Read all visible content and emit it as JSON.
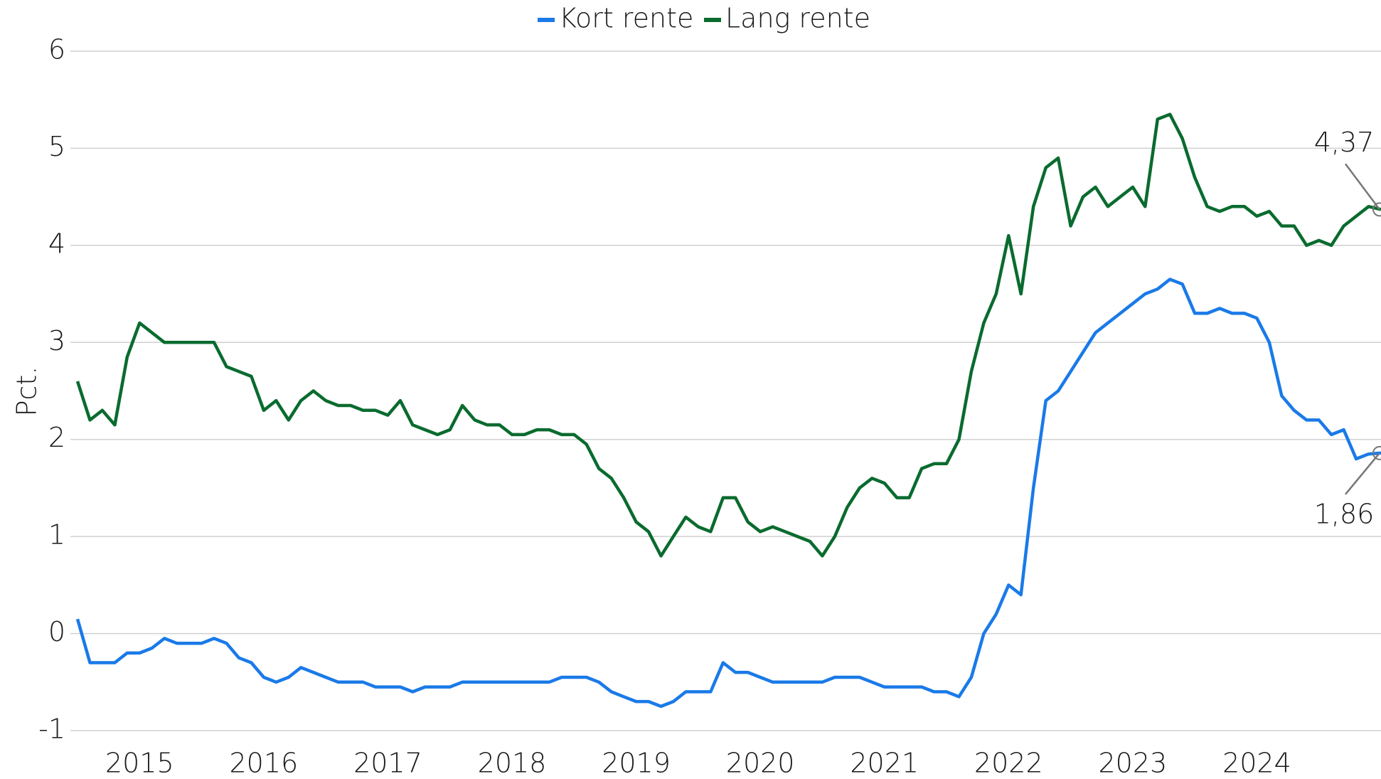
{
  "chart_data": {
    "type": "line",
    "y_label": "Pct.",
    "x": [
      2014.5,
      2014.6,
      2014.7,
      2014.8,
      2014.9,
      2015.0,
      2015.1,
      2015.2,
      2015.3,
      2015.4,
      2015.5,
      2015.6,
      2015.7,
      2015.8,
      2015.9,
      2016.0,
      2016.1,
      2016.2,
      2016.3,
      2016.4,
      2016.5,
      2016.6,
      2016.7,
      2016.8,
      2016.9,
      2017.0,
      2017.1,
      2017.2,
      2017.3,
      2017.4,
      2017.5,
      2017.6,
      2017.7,
      2017.8,
      2017.9,
      2018.0,
      2018.1,
      2018.2,
      2018.3,
      2018.4,
      2018.5,
      2018.6,
      2018.7,
      2018.8,
      2018.9,
      2019.0,
      2019.1,
      2019.2,
      2019.3,
      2019.4,
      2019.5,
      2019.6,
      2019.7,
      2019.8,
      2019.9,
      2020.0,
      2020.1,
      2020.2,
      2020.3,
      2020.4,
      2020.5,
      2020.6,
      2020.7,
      2020.8,
      2020.9,
      2021.0,
      2021.1,
      2021.2,
      2021.3,
      2021.4,
      2021.5,
      2021.6,
      2021.7,
      2021.8,
      2021.9,
      2022.0,
      2022.1,
      2022.2,
      2022.3,
      2022.4,
      2022.5,
      2022.6,
      2022.7,
      2022.8,
      2022.9,
      2023.0,
      2023.1,
      2023.2,
      2023.3,
      2023.4,
      2023.5,
      2023.6,
      2023.7,
      2023.8,
      2023.9,
      2024.0,
      2024.1,
      2024.2,
      2024.3,
      2024.4,
      2024.5,
      2024.6,
      2024.7,
      2024.8,
      2024.9,
      2025.0
    ],
    "series": [
      {
        "name": "Kort rente",
        "color": "#1a7ae8",
        "values": [
          0.15,
          -0.3,
          -0.3,
          -0.3,
          -0.2,
          -0.2,
          -0.15,
          -0.05,
          -0.1,
          -0.1,
          -0.1,
          -0.05,
          -0.1,
          -0.25,
          -0.3,
          -0.45,
          -0.5,
          -0.45,
          -0.35,
          -0.4,
          -0.45,
          -0.5,
          -0.5,
          -0.5,
          -0.55,
          -0.55,
          -0.55,
          -0.6,
          -0.55,
          -0.55,
          -0.55,
          -0.5,
          -0.5,
          -0.5,
          -0.5,
          -0.5,
          -0.5,
          -0.5,
          -0.5,
          -0.45,
          -0.45,
          -0.45,
          -0.5,
          -0.6,
          -0.65,
          -0.7,
          -0.7,
          -0.75,
          -0.7,
          -0.6,
          -0.6,
          -0.6,
          -0.3,
          -0.4,
          -0.4,
          -0.45,
          -0.5,
          -0.5,
          -0.5,
          -0.5,
          -0.5,
          -0.45,
          -0.45,
          -0.45,
          -0.5,
          -0.55,
          -0.55,
          -0.55,
          -0.55,
          -0.6,
          -0.6,
          -0.65,
          -0.45,
          0.0,
          0.2,
          0.5,
          0.4,
          1.5,
          2.4,
          2.5,
          2.7,
          2.9,
          3.1,
          3.2,
          3.3,
          3.4,
          3.5,
          3.55,
          3.65,
          3.6,
          3.3,
          3.3,
          3.35,
          3.3,
          3.3,
          3.25,
          3.0,
          2.45,
          2.3,
          2.2,
          2.2,
          2.05,
          2.1,
          1.8,
          1.85,
          1.86
        ]
      },
      {
        "name": "Lang rente",
        "color": "#0a6b2f",
        "values": [
          2.6,
          2.2,
          2.3,
          2.15,
          2.85,
          3.2,
          3.1,
          3.0,
          3.0,
          3.0,
          3.0,
          3.0,
          2.75,
          2.7,
          2.65,
          2.3,
          2.4,
          2.2,
          2.4,
          2.5,
          2.4,
          2.35,
          2.35,
          2.3,
          2.3,
          2.25,
          2.4,
          2.15,
          2.1,
          2.05,
          2.1,
          2.35,
          2.2,
          2.15,
          2.15,
          2.05,
          2.05,
          2.1,
          2.1,
          2.05,
          2.05,
          1.95,
          1.7,
          1.6,
          1.4,
          1.15,
          1.05,
          0.8,
          1.0,
          1.2,
          1.1,
          1.05,
          1.4,
          1.4,
          1.15,
          1.05,
          1.1,
          1.05,
          1.0,
          0.95,
          0.8,
          1.0,
          1.3,
          1.5,
          1.6,
          1.55,
          1.4,
          1.4,
          1.7,
          1.75,
          1.75,
          2.0,
          2.7,
          3.2,
          3.5,
          4.1,
          3.5,
          4.4,
          4.8,
          4.9,
          4.2,
          4.5,
          4.6,
          4.4,
          4.5,
          4.6,
          4.4,
          5.3,
          5.35,
          5.1,
          4.7,
          4.4,
          4.35,
          4.4,
          4.4,
          4.3,
          4.35,
          4.2,
          4.2,
          4.0,
          4.05,
          4.0,
          4.2,
          4.3,
          4.4,
          4.37
        ]
      }
    ],
    "xlim": [
      2014.5,
      2025.0
    ],
    "xticks": [
      2015,
      2016,
      2017,
      2018,
      2019,
      2020,
      2021,
      2022,
      2023,
      2024
    ],
    "ylim": [
      -1,
      6
    ],
    "yticks": [
      -1,
      0,
      1,
      2,
      3,
      4,
      5,
      6
    ],
    "grid": true,
    "legend": "top",
    "annotations": [
      {
        "text": "4,37",
        "x": 2025.0,
        "y": 4.37,
        "side": "above"
      },
      {
        "text": "1,86",
        "x": 2025.0,
        "y": 1.86,
        "side": "below"
      }
    ]
  }
}
